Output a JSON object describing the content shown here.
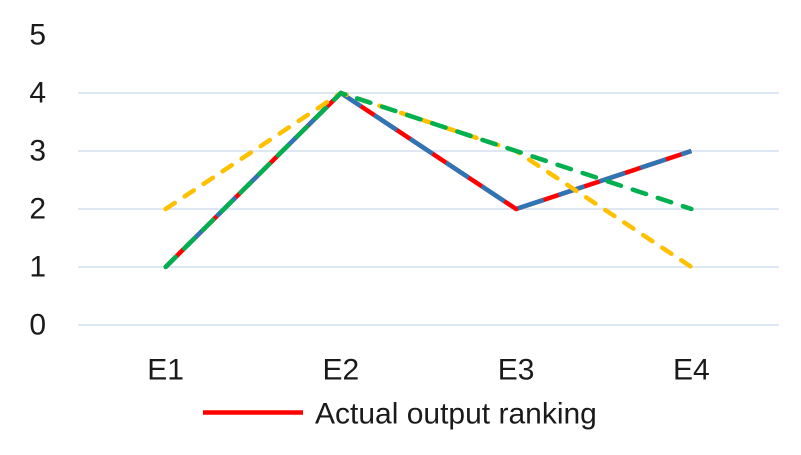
{
  "chart_data": {
    "type": "line",
    "title": "",
    "xlabel": "",
    "ylabel": "",
    "categories": [
      "E1",
      "E2",
      "E3",
      "E4"
    ],
    "y_ticks": [
      0,
      1,
      2,
      3,
      4,
      5
    ],
    "ylim": [
      0,
      5
    ],
    "gridline_ticks": [
      0,
      1,
      2,
      3,
      4
    ],
    "grid": "horizontal light-blue major gridlines, no vertical gridlines, no axis lines",
    "series": [
      {
        "id": "actual-output-ranking",
        "legend_label": "Actual output ranking",
        "color": "#FF0000",
        "line_style": "solid",
        "values": [
          1,
          4,
          2,
          3
        ]
      },
      {
        "id": "blue-series",
        "legend_label": null,
        "color": "#2E75B6",
        "line_style": "long-dash",
        "values": [
          1,
          4,
          2,
          3
        ]
      },
      {
        "id": "yellow-series",
        "legend_label": null,
        "color": "#FFC000",
        "line_style": "dash",
        "values": [
          2,
          4,
          3,
          1
        ]
      },
      {
        "id": "green-series",
        "legend_label": null,
        "color": "#00B050",
        "line_style": "dash",
        "values": [
          1,
          4,
          3,
          2
        ]
      }
    ],
    "legend": {
      "position": "bottom",
      "entries": [
        {
          "label": "Actual output ranking",
          "marker_color": "#FF0000",
          "marker_style": "solid-line"
        }
      ]
    }
  },
  "colors": {
    "background": "#FFFFFF",
    "gridline": "#DEE8F4",
    "axis_text": "#1A1A1A"
  }
}
